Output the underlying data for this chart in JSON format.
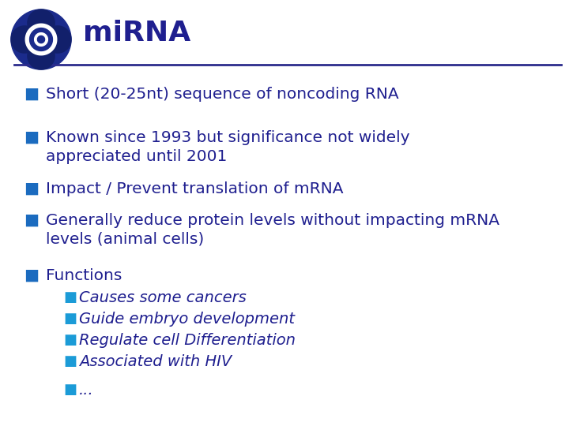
{
  "title": "miRNA",
  "title_color": "#1F1F8F",
  "title_fontsize": 26,
  "line_color": "#2B2B8C",
  "background_color": "#FFFFFF",
  "bullet_color_main": "#1B6BBF",
  "bullet_color_sub": "#1B9BD7",
  "text_color": "#1F1F8F",
  "main_bullets": [
    "Short (20-25nt) sequence of noncoding RNA",
    "Known since 1993 but significance not widely\nappreciated until 2001",
    "Impact / Prevent translation of mRNA",
    "Generally reduce protein levels without impacting mRNA\nlevels (animal cells)",
    "Functions"
  ],
  "sub_bullets": [
    "Causes some cancers",
    "Guide embryo development",
    "Regulate cell Differentiation",
    "Associated with HIV",
    "..."
  ],
  "main_fontsize": 14.5,
  "sub_fontsize": 14,
  "main_bullet_char": "■",
  "sub_bullet_char": "■"
}
